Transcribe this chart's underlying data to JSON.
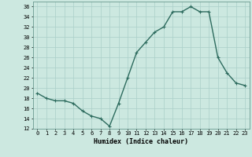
{
  "title": "",
  "xlabel": "Humidex (Indice chaleur)",
  "x": [
    0,
    1,
    2,
    3,
    4,
    5,
    6,
    7,
    8,
    9,
    10,
    11,
    12,
    13,
    14,
    15,
    16,
    17,
    18,
    19,
    20,
    21,
    22,
    23
  ],
  "y": [
    19,
    18,
    17.5,
    17.5,
    17,
    15.5,
    14.5,
    14,
    12.5,
    17,
    22,
    27,
    29,
    31,
    32,
    35,
    35,
    36,
    35,
    35,
    26,
    23,
    21,
    20.5
  ],
  "line_color": "#2d6b5e",
  "bg_color": "#cce8e0",
  "grid_color": "#aacfc8",
  "ylim": [
    12,
    37
  ],
  "xlim": [
    -0.5,
    23.5
  ],
  "yticks": [
    12,
    14,
    16,
    18,
    20,
    22,
    24,
    26,
    28,
    30,
    32,
    34,
    36
  ],
  "xtick_labels": [
    "0",
    "1",
    "2",
    "3",
    "4",
    "5",
    "6",
    "7",
    "8",
    "9",
    "10",
    "11",
    "12",
    "13",
    "14",
    "15",
    "16",
    "17",
    "18",
    "19",
    "20",
    "21",
    "22",
    "23"
  ],
  "marker": "+",
  "linewidth": 1.0,
  "markersize": 3.5,
  "tick_fontsize": 5.0,
  "xlabel_fontsize": 6.0
}
